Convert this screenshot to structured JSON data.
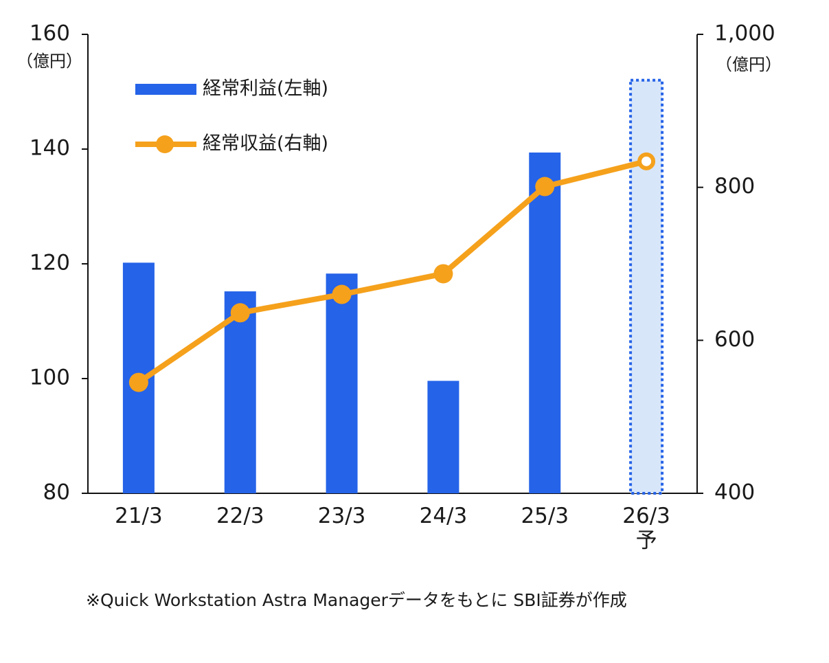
{
  "chart_data": {
    "type": "bar_line",
    "y_label": "（億円）",
    "y2_label": "（億円）",
    "categories": [
      "21/3",
      "22/3",
      "23/3",
      "24/3",
      "25/3",
      "26/3\n予"
    ],
    "forecast": [
      false,
      false,
      false,
      false,
      false,
      true
    ],
    "series": [
      {
        "name": "経常利益(左軸)",
        "type": "bar",
        "axis": "y",
        "color": "#2563e8",
        "forecast_fill": "#d8e6fa",
        "values": [
          120.2,
          115.2,
          118.3,
          99.6,
          139.4,
          152
        ]
      },
      {
        "name": "経常収益(右軸)",
        "type": "line",
        "axis": "y2",
        "color": "#f5a11c",
        "values": [
          545,
          636,
          660,
          687,
          801,
          834
        ]
      }
    ],
    "ylim": [
      80,
      160
    ],
    "yticks": [
      80,
      100,
      120,
      140,
      160
    ],
    "y2lim": [
      400,
      1000
    ],
    "y2ticks": [
      400,
      600,
      800,
      {
        "value": 1000,
        "label": "1,000"
      }
    ],
    "note": "※Quick Workstation Astra Managerデータをもとに SBI証券が作成"
  }
}
